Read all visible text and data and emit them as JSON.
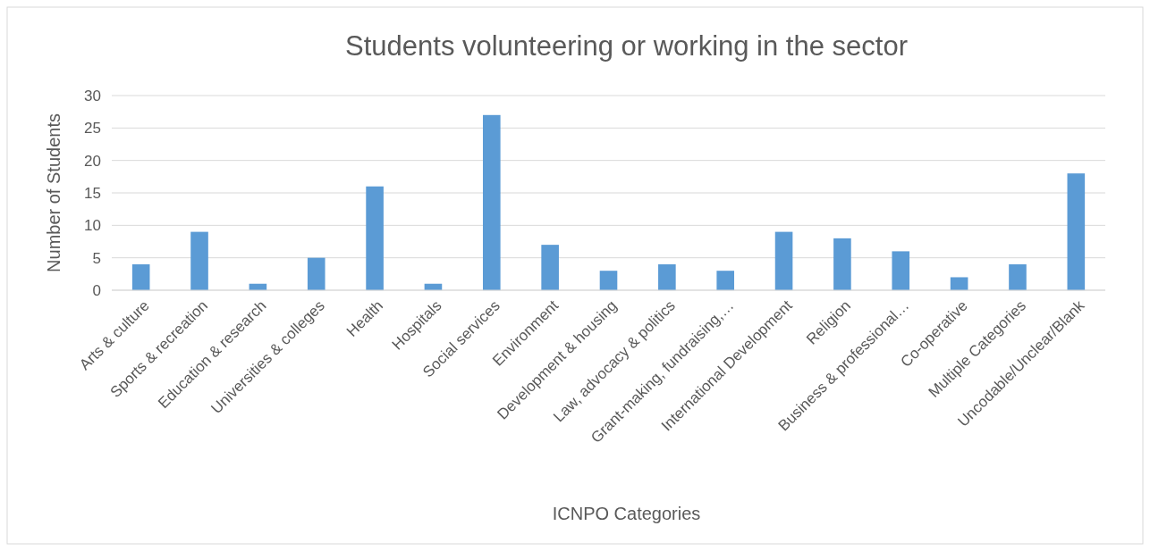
{
  "chart_data": {
    "type": "bar",
    "title": "Students volunteering or working in the sector",
    "xlabel": "ICNPO Categories",
    "ylabel": "Number of Students",
    "categories": [
      "Arts & culture",
      "Sports & recreation",
      "Education & research",
      "Universities & colleges",
      "Health",
      "Hospitals",
      "Social services",
      "Environment",
      "Development & housing",
      "Law, advocacy & politics",
      "Grant-making, fundraising,…",
      "International Development",
      "Religion",
      "Business & professional…",
      "Co-operative",
      "Multiple Categories",
      "Uncodable/Unclear/Blank"
    ],
    "values": [
      4,
      9,
      1,
      5,
      16,
      1,
      27,
      7,
      3,
      4,
      3,
      9,
      8,
      6,
      2,
      4,
      18
    ],
    "color": "#5b9bd5",
    "ylim": [
      0,
      30
    ],
    "yticks": [
      0,
      5,
      10,
      15,
      20,
      25,
      30
    ],
    "grid": "y"
  }
}
